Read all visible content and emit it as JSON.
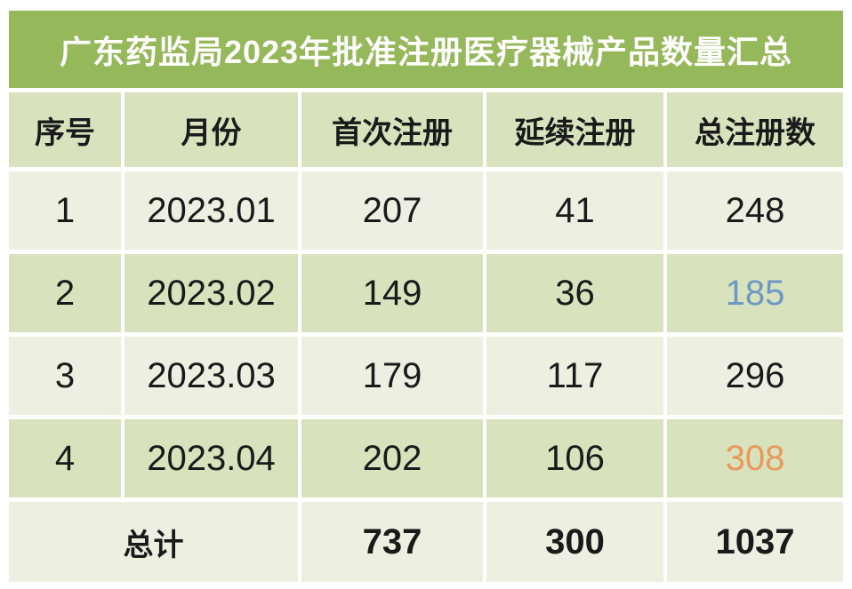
{
  "banner": {
    "title": "广东药监局2023年批准注册医疗器械产品数量汇总"
  },
  "theme": {
    "banner-bg": "#95B85A",
    "banner-fg": "#FFFFFF",
    "row-dark": "#D8E2BC",
    "row-light": "#EDF0E0",
    "text": "#1A1A1A",
    "accent-blue": "#6B98C5",
    "accent-orange": "#EA985C"
  },
  "table": {
    "columns": [
      "序号",
      "月份",
      "首次注册",
      "延续注册",
      "总注册数"
    ],
    "rows": [
      {
        "no": "1",
        "month": "2023.01",
        "first": "207",
        "renewal": "41",
        "total": "248",
        "total_color": "#1A1A1A"
      },
      {
        "no": "2",
        "month": "2023.02",
        "first": "149",
        "renewal": "36",
        "total": "185",
        "total_color": "#6B98C5"
      },
      {
        "no": "3",
        "month": "2023.03",
        "first": "179",
        "renewal": "117",
        "total": "296",
        "total_color": "#1A1A1A"
      },
      {
        "no": "4",
        "month": "2023.04",
        "first": "202",
        "renewal": "106",
        "total": "308",
        "total_color": "#EA985C"
      }
    ],
    "summary": {
      "label": "总计",
      "first": "737",
      "renewal": "300",
      "total": "1037"
    }
  },
  "chart_data": {
    "type": "table",
    "title": "广东药监局2023年批准注册医疗器械产品数量汇总",
    "columns": [
      "序号",
      "月份",
      "首次注册",
      "延续注册",
      "总注册数"
    ],
    "rows": [
      [
        1,
        "2023.01",
        207,
        41,
        248
      ],
      [
        2,
        "2023.02",
        149,
        36,
        185
      ],
      [
        3,
        "2023.03",
        179,
        117,
        296
      ],
      [
        4,
        "2023.04",
        202,
        106,
        308
      ]
    ],
    "summary_row": [
      "总计",
      737,
      300,
      1037
    ],
    "highlighted_values": [
      {
        "value": 185,
        "color": "#6B98C5",
        "location": "row 2, 总注册数"
      },
      {
        "value": 308,
        "color": "#EA985C",
        "location": "row 4, 总注册数"
      }
    ],
    "layout": {
      "header_bg": "#D8E2BC",
      "alternating_row_bgs": [
        "#EDF0E0",
        "#D8E2BC"
      ],
      "title_bg": "#95B85A"
    }
  }
}
